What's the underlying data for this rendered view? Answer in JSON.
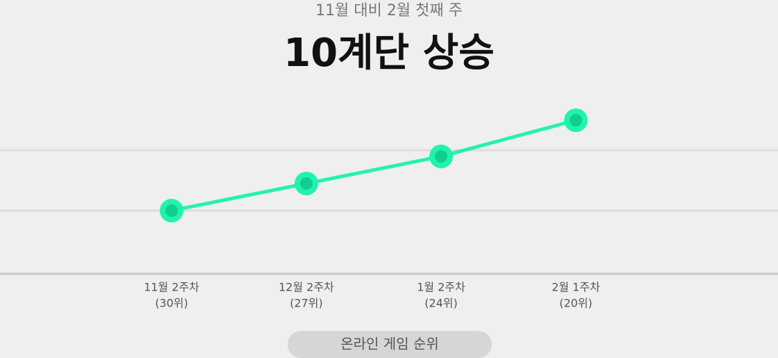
{
  "chart_data": {
    "type": "line",
    "subtitle": "11월 대비 2월 첫째 주",
    "title": "10계단 상승",
    "categories": [
      "11월 2주차",
      "12월 2주차",
      "1월 2주차",
      "2월 1주차"
    ],
    "values": [
      30,
      27,
      24,
      20
    ],
    "value_labels": [
      "(30위)",
      "(27위)",
      "(24위)",
      "(20위)"
    ],
    "ylim": [
      37,
      16
    ],
    "color": "#22f2b0",
    "marker_color": "#10cf8e",
    "footer_label": "온라인 게임 순위"
  }
}
